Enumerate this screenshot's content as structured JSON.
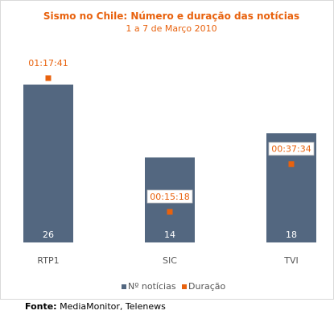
{
  "chart_data": {
    "type": "bar",
    "title": "Sismo no Chile: Número e duração das notícias",
    "subtitle": "1 a 7 de Março 2010",
    "categories": [
      "RTP1",
      "SIC",
      "TVI"
    ],
    "series": [
      {
        "name": "Nº notícias",
        "values": [
          26,
          14,
          18
        ],
        "color": "#536780",
        "type": "bar"
      },
      {
        "name": "Duração",
        "values": [
          "01:17:41",
          "00:15:18",
          "00:37:34"
        ],
        "color": "#e8620e",
        "type": "marker"
      }
    ],
    "ylim": [
      0,
      26
    ],
    "grid": false,
    "legend_position": "bottom",
    "title_color": "#e8620e"
  },
  "source": {
    "label": "Fonte:",
    "text": "MediaMonitor, Telenews"
  }
}
